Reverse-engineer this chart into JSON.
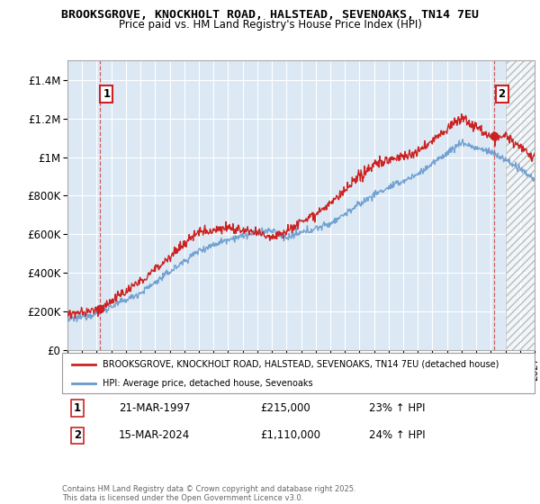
{
  "title_line1": "BROOKSGROVE, KNOCKHOLT ROAD, HALSTEAD, SEVENOAKS, TN14 7EU",
  "title_line2": "Price paid vs. HM Land Registry's House Price Index (HPI)",
  "ylabel_ticks": [
    "£0",
    "£200K",
    "£400K",
    "£600K",
    "£800K",
    "£1M",
    "£1.2M",
    "£1.4M"
  ],
  "ylim": [
    0,
    1500000
  ],
  "ytick_vals": [
    0,
    200000,
    400000,
    600000,
    800000,
    1000000,
    1200000,
    1400000
  ],
  "xmin": 1995.0,
  "xmax": 2027.0,
  "plot_bg_color": "#dce9f5",
  "grid_color": "#ffffff",
  "line1_color": "#cc2222",
  "line2_color": "#6699cc",
  "sale1_x": 1997.22,
  "sale1_y": 215000,
  "sale2_x": 2024.21,
  "sale2_y": 1110000,
  "hatch_start": 2025.0,
  "legend_label1": "BROOKSGROVE, KNOCKHOLT ROAD, HALSTEAD, SEVENOAKS, TN14 7EU (detached house)",
  "legend_label2": "HPI: Average price, detached house, Sevenoaks",
  "note1_num": "1",
  "note1_date": "21-MAR-1997",
  "note1_price": "£215,000",
  "note1_hpi": "23% ↑ HPI",
  "note2_num": "2",
  "note2_date": "15-MAR-2024",
  "note2_price": "£1,110,000",
  "note2_hpi": "24% ↑ HPI",
  "copyright": "Contains HM Land Registry data © Crown copyright and database right 2025.\nThis data is licensed under the Open Government Licence v3.0."
}
